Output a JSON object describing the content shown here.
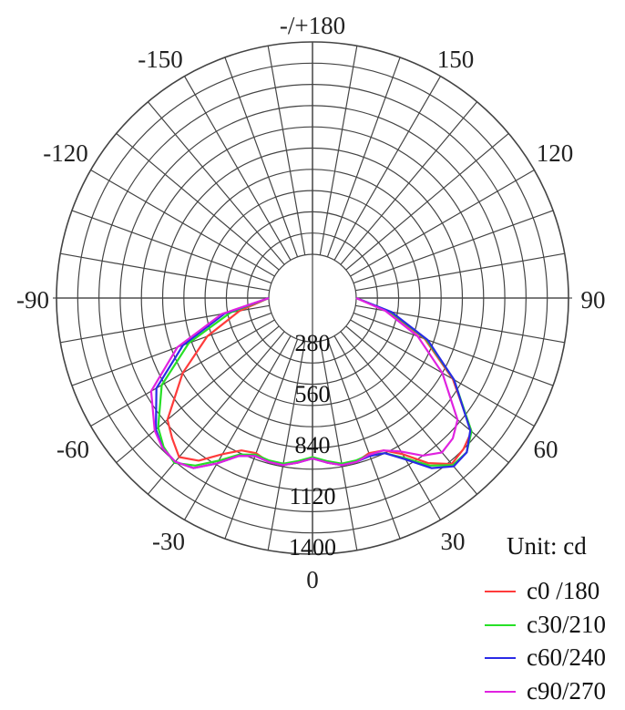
{
  "chart_data": {
    "type": "polar",
    "angle_labels": [
      "-/+180",
      "-150",
      "150",
      "-120",
      "120",
      "-90",
      "90",
      "-60",
      "60",
      "-30",
      "30",
      "0"
    ],
    "angle_label_values": [
      180,
      -150,
      150,
      -120,
      120,
      -90,
      90,
      -60,
      60,
      -30,
      30,
      0
    ],
    "radial_labels": [
      "280",
      "560",
      "840",
      "1120",
      "1400"
    ],
    "radial_ticks": [
      280,
      560,
      840,
      1120,
      1400
    ],
    "radial_max": 1400,
    "grid": true,
    "spoke_step_degrees": 10,
    "legend_title": "Unit: cd",
    "legend_position": "bottom-right",
    "series": [
      {
        "name": "c0 /180",
        "color": "#ff3b3b",
        "angles": [
          -90,
          -80,
          -70,
          -60,
          -50,
          -45,
          -40,
          -35,
          -30,
          -25,
          -20,
          -15,
          -10,
          -5,
          0,
          5,
          10,
          15,
          20,
          25,
          30,
          35,
          40,
          45,
          50,
          60,
          70,
          80,
          90
        ],
        "values": [
          0,
          200,
          450,
          700,
          960,
          1020,
          1080,
          1020,
          900,
          820,
          800,
          830,
          830,
          800,
          760,
          800,
          830,
          830,
          800,
          820,
          900,
          1040,
          1140,
          1120,
          1080,
          780,
          500,
          220,
          0
        ]
      },
      {
        "name": "c30/210",
        "color": "#27e027",
        "angles": [
          -90,
          -80,
          -70,
          -60,
          -50,
          -45,
          -40,
          -35,
          -30,
          -25,
          -20,
          -15,
          -10,
          -5,
          0,
          5,
          10,
          15,
          20,
          25,
          30,
          35,
          40,
          45,
          50,
          60,
          70,
          80,
          90
        ],
        "values": [
          0,
          260,
          580,
          860,
          1040,
          1100,
          1130,
          1060,
          950,
          850,
          810,
          820,
          820,
          790,
          760,
          790,
          820,
          820,
          810,
          840,
          930,
          1060,
          1150,
          1150,
          1080,
          790,
          510,
          230,
          0
        ]
      },
      {
        "name": "c60/240",
        "color": "#2a2ae6",
        "angles": [
          -90,
          -80,
          -70,
          -60,
          -50,
          -45,
          -40,
          -35,
          -30,
          -25,
          -20,
          -15,
          -10,
          -5,
          0,
          5,
          10,
          15,
          20,
          25,
          30,
          35,
          40,
          45,
          50,
          60,
          70,
          80,
          90
        ],
        "values": [
          0,
          300,
          620,
          900,
          1060,
          1110,
          1120,
          1080,
          970,
          860,
          820,
          830,
          830,
          800,
          770,
          800,
          830,
          830,
          820,
          840,
          940,
          1080,
          1160,
          1150,
          1070,
          790,
          520,
          240,
          0
        ]
      },
      {
        "name": "c90/270",
        "color": "#e022e0",
        "angles": [
          -90,
          -80,
          -70,
          -60,
          -50,
          -45,
          -40,
          -35,
          -30,
          -25,
          -20,
          -15,
          -10,
          -5,
          0,
          5,
          10,
          15,
          20,
          25,
          30,
          35,
          40,
          45,
          50,
          60,
          70,
          80,
          90
        ],
        "values": [
          0,
          320,
          660,
          940,
          1070,
          1110,
          1120,
          1080,
          970,
          860,
          820,
          830,
          830,
          800,
          770,
          800,
          830,
          830,
          810,
          820,
          880,
          980,
          1040,
          1020,
          960,
          700,
          450,
          200,
          0
        ]
      }
    ]
  }
}
